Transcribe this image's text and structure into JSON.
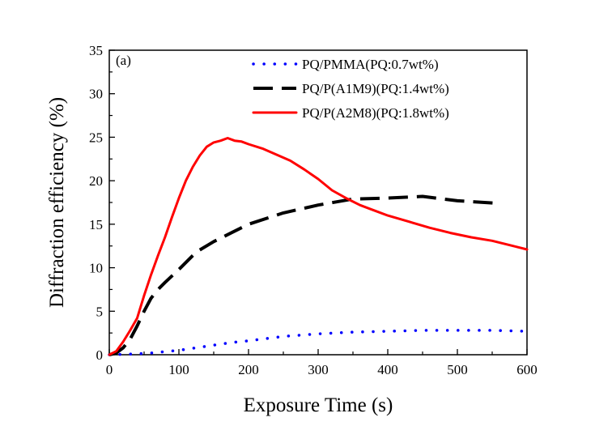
{
  "chart_data": {
    "type": "line",
    "panel_label": "(a)",
    "xlabel": "Exposure Time (s)",
    "ylabel": "Diffraction efficiency (%)",
    "xlim": [
      0,
      600
    ],
    "ylim": [
      0,
      35
    ],
    "xticks": [
      0,
      100,
      200,
      300,
      400,
      500,
      600
    ],
    "yticks": [
      0,
      5,
      10,
      15,
      20,
      25,
      30,
      35
    ],
    "grid": false,
    "legend_position": "top-right",
    "series": [
      {
        "name": "PQ/PMMA(PQ:0.7wt%)",
        "color": "#0000ff",
        "style": "dotted",
        "x": [
          0,
          20,
          40,
          60,
          80,
          100,
          125,
          150,
          175,
          200,
          250,
          300,
          350,
          400,
          450,
          500,
          550,
          600
        ],
        "y": [
          0,
          0.05,
          0.1,
          0.2,
          0.35,
          0.5,
          0.8,
          1.1,
          1.4,
          1.6,
          2.1,
          2.4,
          2.6,
          2.7,
          2.8,
          2.8,
          2.8,
          2.7
        ]
      },
      {
        "name": "PQ/P(A1M9)(PQ:1.4wt%)",
        "color": "#000000",
        "style": "dashed",
        "x": [
          0,
          10,
          20,
          30,
          40,
          50,
          60,
          70,
          80,
          100,
          125,
          150,
          175,
          200,
          250,
          300,
          350,
          400,
          450,
          500,
          560
        ],
        "y": [
          0,
          0.2,
          0.8,
          1.8,
          3.3,
          5.0,
          6.5,
          7.5,
          8.3,
          9.8,
          11.8,
          13.0,
          14.0,
          15.0,
          16.3,
          17.2,
          17.9,
          18.0,
          18.2,
          17.7,
          17.4
        ]
      },
      {
        "name": "PQ/P(A2M8)(PQ:1.8wt%)",
        "color": "#ff0000",
        "style": "solid",
        "x": [
          0,
          10,
          20,
          30,
          40,
          50,
          60,
          70,
          80,
          90,
          100,
          110,
          120,
          130,
          140,
          150,
          160,
          170,
          180,
          190,
          200,
          220,
          240,
          260,
          280,
          300,
          320,
          340,
          360,
          380,
          400,
          430,
          460,
          490,
          520,
          550,
          580,
          600
        ],
        "y": [
          0,
          0.4,
          1.5,
          2.8,
          4.2,
          6.8,
          9.2,
          11.4,
          13.5,
          15.8,
          18.0,
          20.0,
          21.6,
          22.9,
          23.9,
          24.4,
          24.6,
          24.9,
          24.6,
          24.5,
          24.2,
          23.7,
          23.0,
          22.3,
          21.3,
          20.2,
          18.9,
          18.0,
          17.2,
          16.6,
          16.0,
          15.3,
          14.6,
          14.0,
          13.5,
          13.1,
          12.5,
          12.1
        ]
      }
    ]
  }
}
